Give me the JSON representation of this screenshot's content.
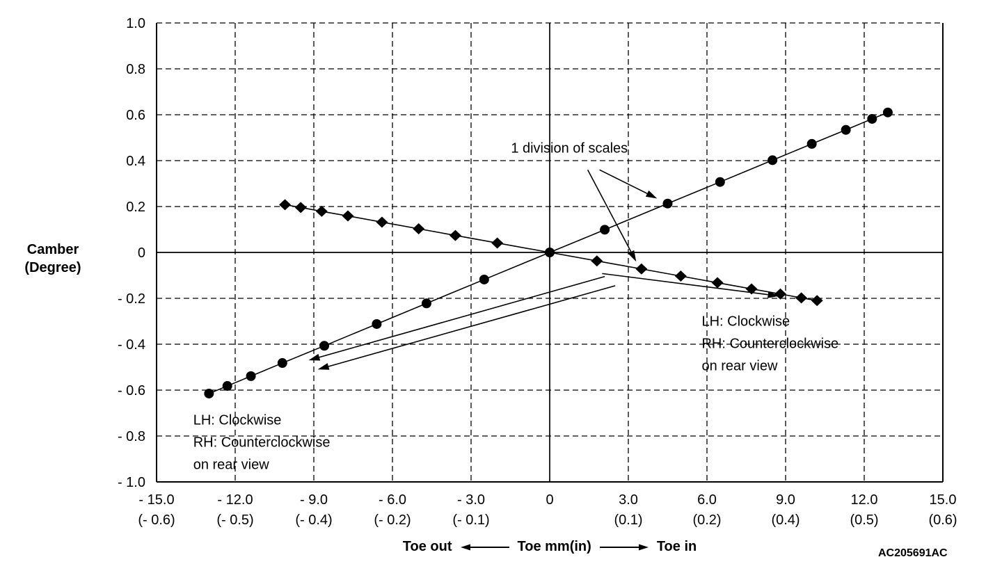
{
  "figure": {
    "code": "AC205691AC",
    "background": "#ffffff",
    "ink": "#000000"
  },
  "axis_captions": {
    "camber_line1": "Camber",
    "camber_line2": "(Degree)",
    "toe_out": "Toe out",
    "toe_center": "Toe mm(in)",
    "toe_in": "Toe in"
  },
  "chart_data": {
    "type": "scatter",
    "title": "",
    "xlabel": "Toe mm(in)",
    "ylabel": "Camber (Degree)",
    "xlim": [
      -15,
      15
    ],
    "ylim": [
      -1,
      1
    ],
    "grid": "dashed",
    "x_ticks": [
      {
        "mm": -15,
        "label": "- 15.0",
        "inch": "(- 0.6)"
      },
      {
        "mm": -12,
        "label": "- 12.0",
        "inch": "(- 0.5)"
      },
      {
        "mm": -9,
        "label": "- 9.0",
        "inch": "(- 0.4)"
      },
      {
        "mm": -6,
        "label": "- 6.0",
        "inch": "(- 0.2)"
      },
      {
        "mm": -3,
        "label": "- 3.0",
        "inch": "(- 0.1)"
      },
      {
        "mm": 0,
        "label": "0",
        "inch": ""
      },
      {
        "mm": 3,
        "label": "3.0",
        "inch": "(0.1)"
      },
      {
        "mm": 6,
        "label": "6.0",
        "inch": "(0.2)"
      },
      {
        "mm": 9,
        "label": "9.0",
        "inch": "(0.4)"
      },
      {
        "mm": 12,
        "label": "12.0",
        "inch": "(0.5)"
      },
      {
        "mm": 15,
        "label": "15.0",
        "inch": "(0.6)"
      }
    ],
    "y_ticks": [
      {
        "value": 1.0,
        "label": "1.0"
      },
      {
        "value": 0.8,
        "label": "0.8"
      },
      {
        "value": 0.6,
        "label": "0.6"
      },
      {
        "value": 0.4,
        "label": "0.4"
      },
      {
        "value": 0.2,
        "label": "0.2"
      },
      {
        "value": 0,
        "label": "0"
      },
      {
        "value": -0.2,
        "label": "- 0.2"
      },
      {
        "value": -0.4,
        "label": "- 0.4"
      },
      {
        "value": -0.6,
        "label": "- 0.6"
      },
      {
        "value": -0.8,
        "label": "- 0.8"
      },
      {
        "value": -1.0,
        "label": "- 1.0"
      }
    ],
    "series": [
      {
        "name": "circle-marker-line",
        "marker": "circle",
        "points": [
          [
            -13.0,
            -0.615
          ],
          [
            -12.3,
            -0.582
          ],
          [
            -11.4,
            -0.539
          ],
          [
            -10.2,
            -0.482
          ],
          [
            -8.6,
            -0.407
          ],
          [
            -6.6,
            -0.312
          ],
          [
            -4.7,
            -0.222
          ],
          [
            -2.5,
            -0.118
          ],
          [
            0,
            0
          ],
          [
            2.1,
            0.099
          ],
          [
            4.5,
            0.213
          ],
          [
            6.5,
            0.307
          ],
          [
            8.5,
            0.402
          ],
          [
            10.0,
            0.473
          ],
          [
            11.3,
            0.534
          ],
          [
            12.3,
            0.582
          ],
          [
            12.9,
            0.61
          ]
        ]
      },
      {
        "name": "diamond-marker-line",
        "marker": "diamond",
        "points": [
          [
            -10.1,
            0.208
          ],
          [
            -9.5,
            0.196
          ],
          [
            -8.7,
            0.179
          ],
          [
            -7.7,
            0.159
          ],
          [
            -6.4,
            0.132
          ],
          [
            -5.0,
            0.103
          ],
          [
            -3.6,
            0.074
          ],
          [
            -2.0,
            0.041
          ],
          [
            0,
            0
          ],
          [
            1.8,
            -0.037
          ],
          [
            3.5,
            -0.072
          ],
          [
            5.0,
            -0.103
          ],
          [
            6.4,
            -0.132
          ],
          [
            7.7,
            -0.159
          ],
          [
            8.8,
            -0.181
          ],
          [
            9.6,
            -0.198
          ],
          [
            10.2,
            -0.21
          ]
        ]
      }
    ],
    "annotations": {
      "scale_note": {
        "text": "1 division of scales",
        "x": 0.75,
        "y": 0.435,
        "arrows": [
          {
            "from": [
              1.9,
              0.36
            ],
            "to": [
              4.1,
              0.235
            ]
          },
          {
            "from": [
              1.45,
              0.36
            ],
            "to": [
              3.3,
              -0.04
            ]
          }
        ]
      },
      "left_note": {
        "lines": [
          "LH: Clockwise",
          "RH: Counterclockwise",
          "on rear view"
        ],
        "x": -13.6,
        "y": -0.75
      },
      "right_note": {
        "lines": [
          "LH: Clockwise",
          "RH: Counterclockwise",
          "on rear view"
        ],
        "x": 5.8,
        "y": -0.32
      },
      "direction_arrows": [
        {
          "from": [
            2.1,
            -0.105
          ],
          "to": [
            -9.2,
            -0.47
          ]
        },
        {
          "from": [
            2.5,
            -0.145
          ],
          "to": [
            -8.85,
            -0.51
          ]
        },
        {
          "from": [
            2.0,
            -0.092
          ],
          "to": [
            8.75,
            -0.19
          ]
        }
      ]
    }
  }
}
